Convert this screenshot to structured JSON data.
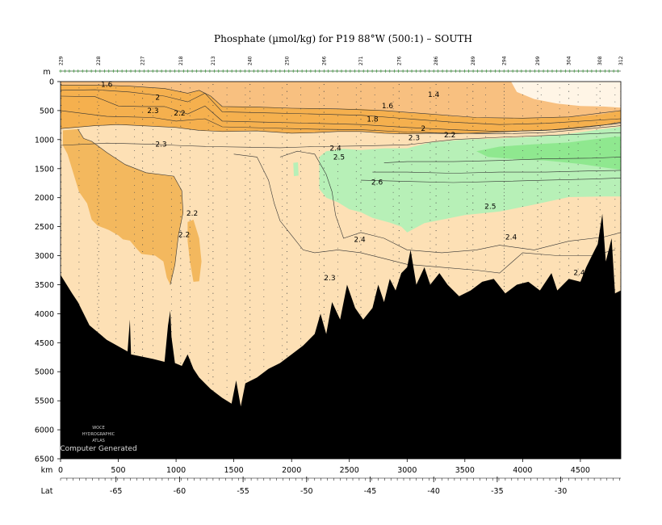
{
  "chart_data": {
    "type": "heatmap",
    "title": "Phosphate (µmol/kg) for P19 88°W (500:1) – SOUTH",
    "depth_unit_label": "m",
    "distance_unit_label": "km",
    "lat_label": "Lat",
    "xlim_km": [
      0,
      4850
    ],
    "ylim_m": [
      0,
      6500
    ],
    "y_ticks": [
      0,
      500,
      1000,
      1500,
      2000,
      2500,
      3000,
      3500,
      4000,
      4500,
      5000,
      5500,
      6000,
      6500
    ],
    "x_ticks": [
      0,
      500,
      1000,
      1500,
      2000,
      2500,
      3000,
      3500,
      4000,
      4500
    ],
    "lat_ticks": [
      {
        "km": 480,
        "label": "-65"
      },
      {
        "km": 1030,
        "label": "-60"
      },
      {
        "km": 1580,
        "label": "-55"
      },
      {
        "km": 2130,
        "label": "-50"
      },
      {
        "km": 2680,
        "label": "-45"
      },
      {
        "km": 3230,
        "label": "-40"
      },
      {
        "km": 3780,
        "label": "-35"
      },
      {
        "km": 4330,
        "label": "-30"
      }
    ],
    "stations": [
      {
        "km": 5,
        "label": "229"
      },
      {
        "km": 330,
        "label": "228"
      },
      {
        "km": 710,
        "label": "227"
      },
      {
        "km": 1040,
        "label": "218"
      },
      {
        "km": 1320,
        "label": "213"
      },
      {
        "km": 1640,
        "label": "240"
      },
      {
        "km": 1960,
        "label": "250"
      },
      {
        "km": 2280,
        "label": "266"
      },
      {
        "km": 2600,
        "label": "271"
      },
      {
        "km": 2930,
        "label": "276"
      },
      {
        "km": 3250,
        "label": "286"
      },
      {
        "km": 3570,
        "label": "289"
      },
      {
        "km": 3840,
        "label": "294"
      },
      {
        "km": 4130,
        "label": "299"
      },
      {
        "km": 4400,
        "label": "304"
      },
      {
        "km": 4670,
        "label": "308"
      },
      {
        "km": 4850,
        "label": "312"
      }
    ],
    "contour_labels": [
      {
        "text": "1.6",
        "km": 400,
        "depth": 50
      },
      {
        "text": "2",
        "km": 840,
        "depth": 270
      },
      {
        "text": "2.3",
        "km": 800,
        "depth": 500
      },
      {
        "text": "2.2",
        "km": 1030,
        "depth": 540
      },
      {
        "text": "1.4",
        "km": 3230,
        "depth": 220
      },
      {
        "text": "1.6",
        "km": 2830,
        "depth": 420
      },
      {
        "text": "1.8",
        "km": 2700,
        "depth": 650
      },
      {
        "text": "2",
        "km": 3140,
        "depth": 810
      },
      {
        "text": "2.2",
        "km": 3370,
        "depth": 920
      },
      {
        "text": "2.3",
        "km": 3060,
        "depth": 970
      },
      {
        "text": "2.3",
        "km": 870,
        "depth": 1080
      },
      {
        "text": "2.4",
        "km": 2380,
        "depth": 1150
      },
      {
        "text": "2.5",
        "km": 2410,
        "depth": 1300
      },
      {
        "text": "2.6",
        "km": 2740,
        "depth": 1730
      },
      {
        "text": "2.5",
        "km": 3720,
        "depth": 2150
      },
      {
        "text": "2.2",
        "km": 1140,
        "depth": 2270
      },
      {
        "text": "2.2",
        "km": 1070,
        "depth": 2640
      },
      {
        "text": "2.4",
        "km": 2590,
        "depth": 2720
      },
      {
        "text": "2.4",
        "km": 3900,
        "depth": 2680
      },
      {
        "text": "2.3",
        "km": 2330,
        "depth": 3380
      },
      {
        "text": "2.4",
        "km": 4490,
        "depth": 3290
      }
    ],
    "colors": {
      "lt_1.4": "#fff5e6",
      "1.4_1.6": "#f8c080",
      "1.6_2.2": "#f5b04e",
      "2.2_2.3": "#f3b85e",
      "2.3_2.5": "#fde0b5",
      "2.5_2.6": "#b7f0b7",
      "gt_2.6": "#8fe88f",
      "bottom": "#000000"
    },
    "grid": false
  },
  "logo": {
    "line1": "WOCE",
    "line2": "HYDROGRAPHIC",
    "line3": "ATLAS"
  },
  "credit": "Computer Generated"
}
